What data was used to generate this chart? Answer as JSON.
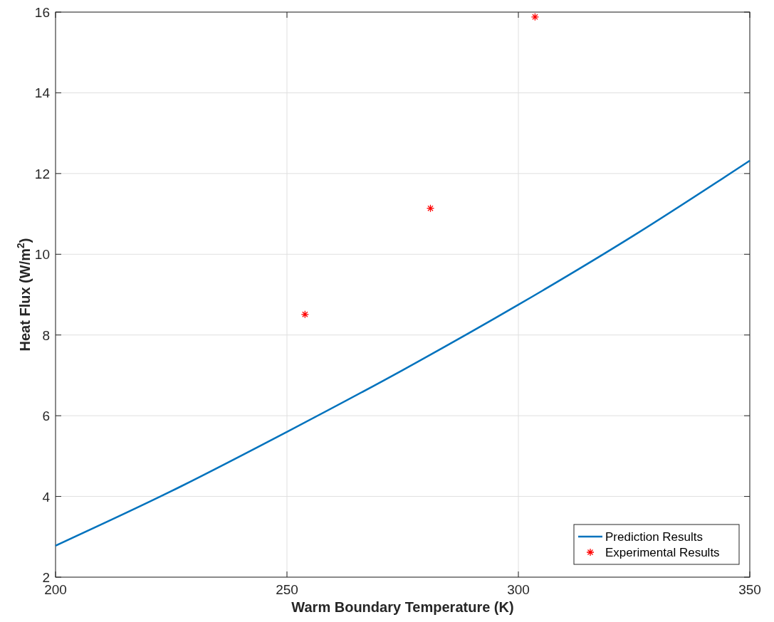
{
  "chart_data": {
    "type": "line",
    "xlabel": "Warm Boundary Temperature (K)",
    "ylabel": "Heat Flux (W/m$^{2}$)",
    "xlim": [
      200,
      350
    ],
    "xticks": [
      200,
      250,
      300,
      350
    ],
    "ylim": [
      2,
      16
    ],
    "yticks": [
      2,
      4,
      6,
      8,
      10,
      12,
      14,
      16
    ],
    "grid": true,
    "legend": "bottom right",
    "series": [
      {
        "name": "Prediction Results",
        "color": "#0072bd",
        "marker": "none",
        "line_style": "solid",
        "x": [
          200,
          225,
          250,
          275,
          300,
          325,
          350
        ],
        "values": [
          2.78,
          4.13,
          5.6,
          7.13,
          8.75,
          10.47,
          12.32
        ]
      },
      {
        "name": "Experimental Results",
        "type": "scatter",
        "color": "#ff0000",
        "marker": "cross",
        "x": [
          253.9,
          281.0,
          303.6
        ],
        "values": [
          8.51,
          11.14,
          15.88
        ]
      }
    ]
  }
}
